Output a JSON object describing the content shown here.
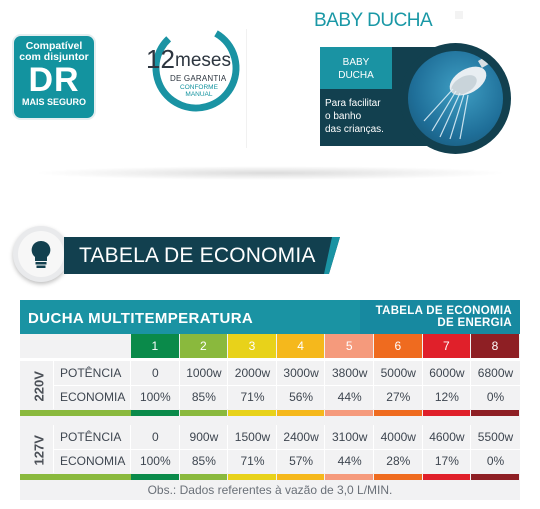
{
  "badge": {
    "line1": "Compatível",
    "line2": "com disjuntor",
    "big": "DR",
    "line3": "MAIS SEGURO"
  },
  "guarantee": {
    "number": "12",
    "word": "meses",
    "sub": "DE GARANTIA",
    "sub2a": "CONFORME",
    "sub2b": "MANUAL"
  },
  "product": {
    "title": "BABY DUCHA",
    "tab_line1": "BABY",
    "tab_line2": "DUCHA",
    "desc_line1": "Para facilitar",
    "desc_line2": "o banho",
    "desc_line3": "das crianças."
  },
  "section": {
    "title": "TABELA DE ECONOMIA",
    "icon": "lightbulb-icon"
  },
  "table": {
    "title_left": "DUCHA MULTITEMPERATURA",
    "title_right_1": "TABELA DE ECONOMIA",
    "title_right_2": "DE ENERGIA",
    "levels": [
      "1",
      "2",
      "3",
      "4",
      "5",
      "6",
      "7",
      "8"
    ],
    "level_colors": [
      "#0a8a4a",
      "#8ab93d",
      "#e8d21a",
      "#f5b81c",
      "#f59a7c",
      "#ef6b1f",
      "#e0202a",
      "#8e1f24"
    ],
    "groups": [
      {
        "voltage": "220V",
        "rows": [
          {
            "label": "POTÊNCIA",
            "values": [
              "0",
              "1000w",
              "2000w",
              "3000w",
              "3800w",
              "5000w",
              "6000w",
              "6800w"
            ]
          },
          {
            "label": "ECONOMIA",
            "values": [
              "100%",
              "85%",
              "71%",
              "56%",
              "44%",
              "27%",
              "12%",
              "0%"
            ]
          }
        ]
      },
      {
        "voltage": "127V",
        "rows": [
          {
            "label": "POTÊNCIA",
            "values": [
              "0",
              "900w",
              "1500w",
              "2400w",
              "3100w",
              "4000w",
              "4600w",
              "5500w"
            ]
          },
          {
            "label": "ECONOMIA",
            "values": [
              "100%",
              "85%",
              "71%",
              "57%",
              "44%",
              "28%",
              "17%",
              "0%"
            ]
          }
        ]
      }
    ],
    "note": "Obs.: Dados referentes à vazão de 3,0 L/MIN."
  },
  "colors": {
    "teal": "#1a93a3",
    "navy": "#12404f"
  }
}
